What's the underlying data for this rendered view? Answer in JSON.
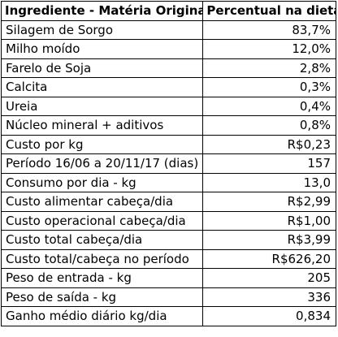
{
  "table": {
    "headers": {
      "ingredient": "Ingrediente - Matéria Original",
      "percent": "Percentual na dieta"
    },
    "rows": [
      {
        "label": "Silagem de Sorgo",
        "value": "83,7%"
      },
      {
        "label": "Milho moído",
        "value": "12,0%"
      },
      {
        "label": "Farelo de Soja",
        "value": "2,8%"
      },
      {
        "label": "Calcita",
        "value": "0,3%"
      },
      {
        "label": "Ureia",
        "value": "0,4%"
      },
      {
        "label": "Núcleo mineral + aditivos",
        "value": "0,8%"
      },
      {
        "label": "Custo por kg",
        "value": "R$0,23"
      },
      {
        "label": "Período 16/06 a 20/11/17 (dias)",
        "value": "157"
      },
      {
        "label": "Consumo por dia - kg",
        "value": "13,0"
      },
      {
        "label": "Custo alimentar cabeça/dia",
        "value": "R$2,99"
      },
      {
        "label": "Custo operacional cabeça/dia",
        "value": "R$1,00"
      },
      {
        "label": "Custo total cabeça/dia",
        "value": "R$3,99"
      },
      {
        "label": "Custo total/cabeça no período",
        "value": "R$626,20"
      },
      {
        "label": "Peso de entrada - kg",
        "value": "205"
      },
      {
        "label": "Peso de saída - kg",
        "value": "336"
      },
      {
        "label": "Ganho médio diário kg/dia",
        "value": "0,834"
      }
    ]
  }
}
